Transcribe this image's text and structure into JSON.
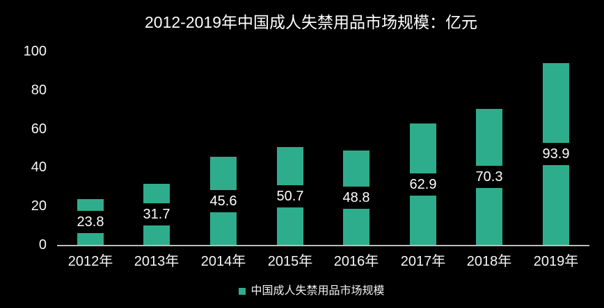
{
  "title": "2012-2019年中国成人失禁用品市场规模：亿元",
  "legend": {
    "label": "中国成人失禁用品市场规模",
    "swatch_color": "#2ead8c"
  },
  "chart_data": {
    "type": "bar",
    "title": "2012-2019年中国成人失禁用品市场规模：亿元",
    "categories": [
      "2012年",
      "2013年",
      "2014年",
      "2015年",
      "2016年",
      "2017年",
      "2018年",
      "2019年"
    ],
    "series": [
      {
        "name": "中国成人失禁用品市场规模",
        "values": [
          23.8,
          31.7,
          45.6,
          50.7,
          48.8,
          62.9,
          70.3,
          93.9
        ]
      }
    ],
    "value_labels": [
      "23.8",
      "31.7",
      "45.6",
      "50.7",
      "48.8",
      "62.9",
      "70.3",
      "93.9"
    ],
    "xlabel": "",
    "ylabel": "",
    "ylim": [
      0,
      100
    ],
    "yticks": [
      0,
      20,
      40,
      60,
      80,
      100
    ],
    "grid": false,
    "legend_position": "bottom",
    "colors": {
      "bar": "#2ead8c",
      "background": "#000000",
      "text": "#ffffff",
      "axis_line": "#bdbdbd",
      "value_label_background": "#000000"
    }
  }
}
